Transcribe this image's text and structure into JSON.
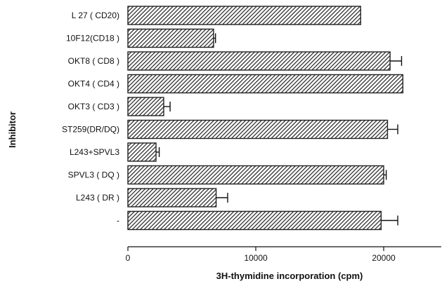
{
  "chart_data": {
    "type": "bar",
    "orientation": "horizontal",
    "categories": [
      "L 27 ( CD20)",
      "10F12(CD18 )",
      "OKT8 ( CD8 )",
      "OKT4 ( CD4 )",
      "OKT3 ( CD3 )",
      "ST259(DR/DQ)",
      "L243+SPVL3",
      "SPVL3 ( DQ )",
      "L243 ( DR )",
      "-"
    ],
    "values": [
      18200,
      6700,
      20500,
      21500,
      2800,
      20300,
      2200,
      20000,
      6900,
      19800
    ],
    "errors": [
      0,
      150,
      900,
      0,
      500,
      800,
      250,
      200,
      900,
      1300
    ],
    "xlabel": "3H-thymidine incorporation (cpm)",
    "ylabel": "Inhibitor",
    "xticks": [
      0,
      10000,
      20000
    ],
    "xtick_labels": [
      "0",
      "10000",
      "20000"
    ],
    "xlim": [
      0,
      24500
    ],
    "grid": false,
    "bar_pattern": "diagonal-hatch",
    "bar_color": "#222222"
  }
}
